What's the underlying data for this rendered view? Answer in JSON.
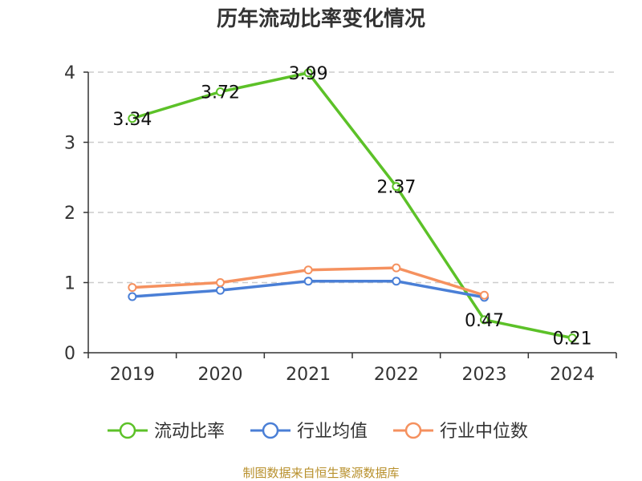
{
  "chart_data": {
    "type": "line",
    "title": "历年流动比率变化情况",
    "categories": [
      "2019",
      "2020",
      "2021",
      "2022",
      "2023",
      "2024"
    ],
    "y_ticks": [
      "0",
      "1",
      "2",
      "3",
      "4"
    ],
    "ylim": [
      0,
      4
    ],
    "grid": true,
    "legend_position": "bottom",
    "series": [
      {
        "name": "流动比率",
        "color": "#5cc128",
        "values": [
          3.34,
          3.72,
          3.99,
          2.37,
          0.47,
          0.21
        ],
        "labels": [
          "3.34",
          "3.72",
          "3.99",
          "2.37",
          "0.47",
          "0.21"
        ]
      },
      {
        "name": "行业均值",
        "color": "#4a7fd6",
        "values": [
          0.8,
          0.89,
          1.02,
          1.02,
          0.79,
          null
        ]
      },
      {
        "name": "行业中位数",
        "color": "#f5915f",
        "values": [
          0.93,
          1.0,
          1.18,
          1.21,
          0.82,
          null
        ]
      }
    ],
    "source": "制图数据来自恒生聚源数据库"
  }
}
